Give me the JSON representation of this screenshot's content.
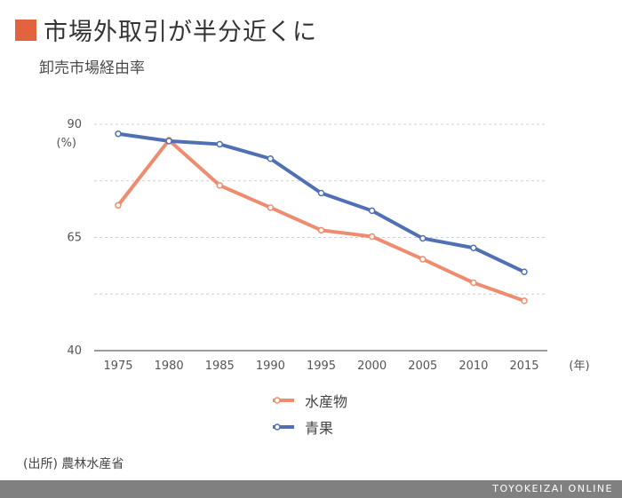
{
  "header": {
    "title": "市場外取引が半分近くに",
    "subtitle": "卸売市場経由率",
    "accent_color": "#e2643f"
  },
  "chart_data": {
    "type": "line",
    "x": [
      1975,
      1980,
      1985,
      1990,
      1995,
      2000,
      2005,
      2010,
      2015
    ],
    "series": [
      {
        "name": "水産物",
        "color": "#ee8c6f",
        "values": [
          72.1,
          86.5,
          76.5,
          71.6,
          66.6,
          65.2,
          60.2,
          55.0,
          51.0
        ]
      },
      {
        "name": "青果",
        "color": "#5070b3",
        "values": [
          87.9,
          86.3,
          85.6,
          82.4,
          74.8,
          70.9,
          64.8,
          62.7,
          57.4
        ]
      }
    ],
    "ylim": [
      40,
      90
    ],
    "yticks": [
      90,
      65,
      40
    ],
    "y_unit_label": "(%)",
    "x_unit_label": "(年)",
    "grid": "dashed horizontal",
    "legend_position": "bottom-center"
  },
  "source": "(出所) 農林水産省",
  "footer": {
    "brand": "TOYOKEIZAI ONLINE"
  }
}
